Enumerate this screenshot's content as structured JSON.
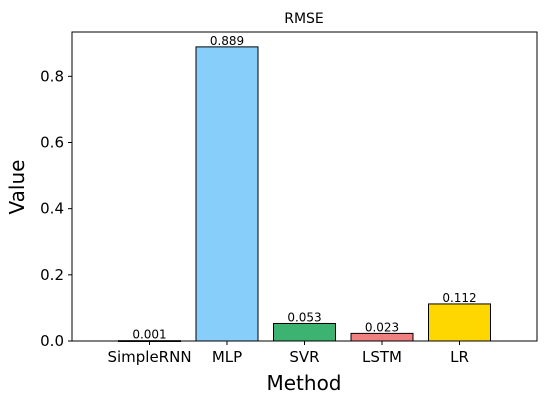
{
  "chart_data": {
    "type": "bar",
    "title": "RMSE",
    "xlabel": "Method",
    "ylabel": "Value",
    "categories": [
      "SimpleRNN",
      "MLP",
      "SVR",
      "LSTM",
      "LR"
    ],
    "values": [
      0.001,
      0.889,
      0.053,
      0.023,
      0.112
    ],
    "data_labels": [
      "0.001",
      "0.889",
      "0.053",
      "0.023",
      "0.112"
    ],
    "colors": [
      "#4682b4",
      "#87cefa",
      "#3cb371",
      "#f08080",
      "#ffd700"
    ],
    "edge_color": "#000000",
    "ylim": [
      0,
      0.934
    ],
    "yticks": [
      0.0,
      0.2,
      0.4,
      0.6,
      0.8
    ],
    "ytick_labels": [
      "0.0",
      "0.2",
      "0.4",
      "0.6",
      "0.8"
    ],
    "grid": false,
    "legend": "none"
  }
}
